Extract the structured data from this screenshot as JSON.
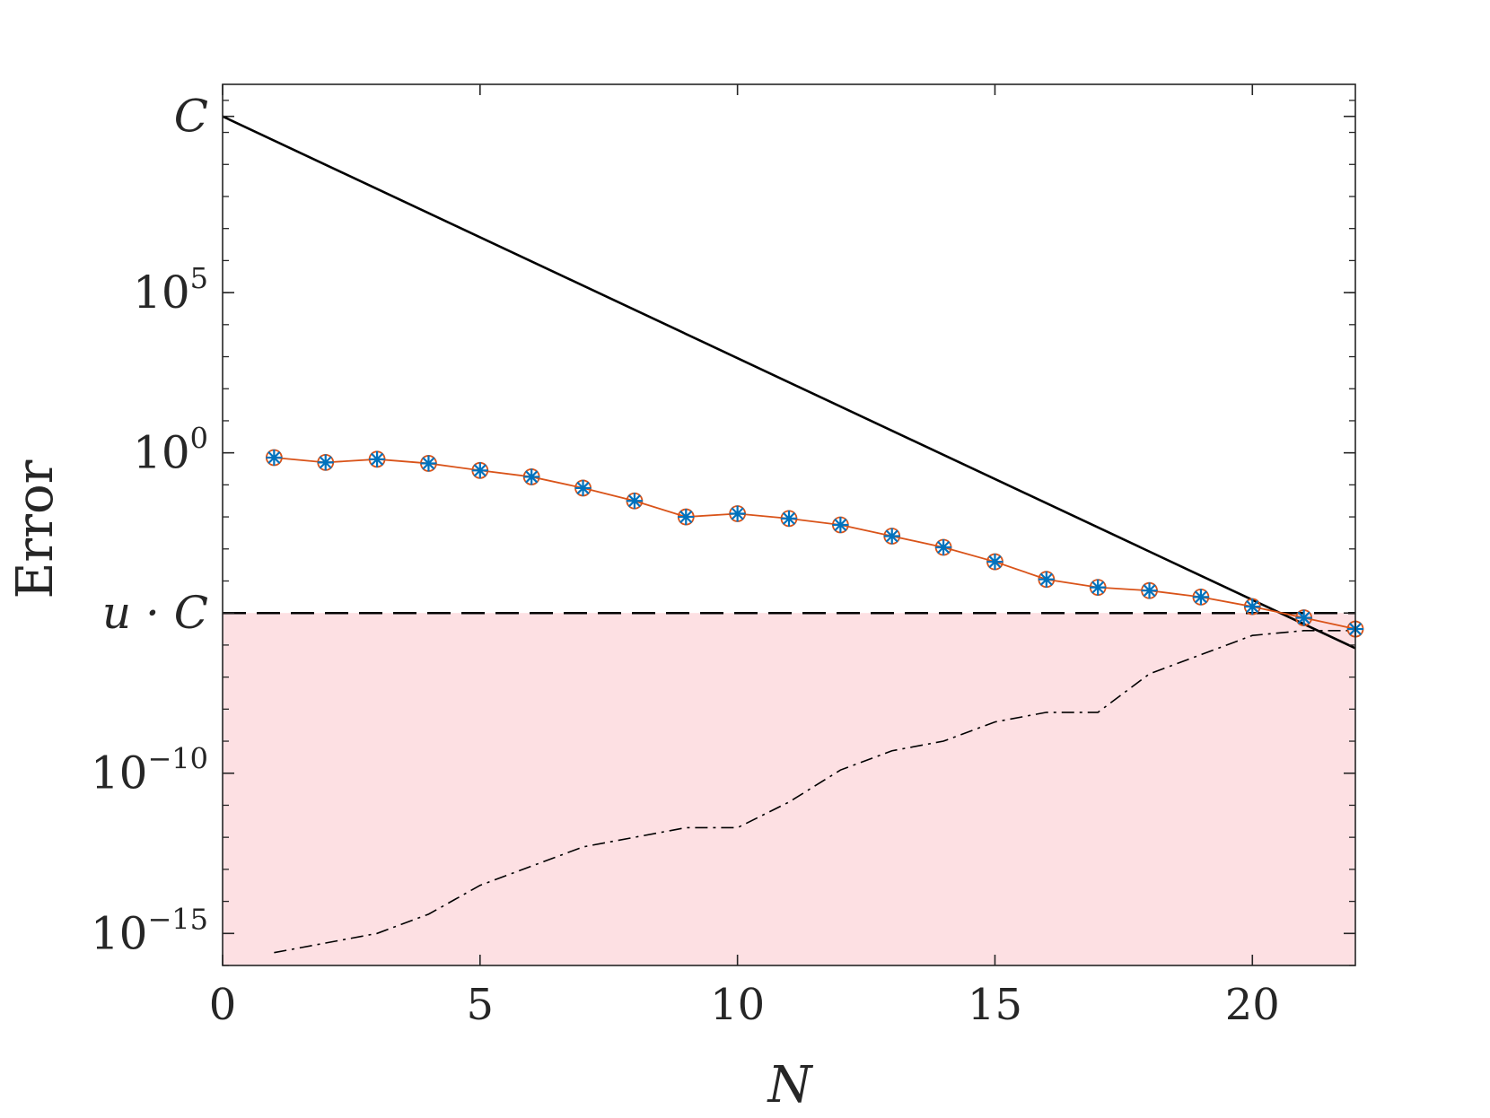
{
  "chart_data": {
    "type": "line",
    "title": "",
    "xlabel": "N",
    "ylabel": "Error",
    "xlim": [
      0,
      22
    ],
    "ylim_log10": [
      -16,
      11.5
    ],
    "y_scale": "log",
    "grid": false,
    "legend": "none",
    "x_ticks": [
      0,
      5,
      10,
      15,
      20
    ],
    "x_tick_labels": [
      "0",
      "5",
      "10",
      "15",
      "20"
    ],
    "y_ticks": [
      {
        "log10": 10.5,
        "base": "C",
        "exp": ""
      },
      {
        "log10": 5,
        "base": "10",
        "exp": "5"
      },
      {
        "log10": 0,
        "base": "10",
        "exp": "0"
      },
      {
        "log10": -5,
        "base": "u · C",
        "exp": ""
      },
      {
        "log10": -10,
        "base": "10",
        "exp": "−10"
      },
      {
        "log10": -15,
        "base": "10",
        "exp": "−15"
      }
    ],
    "shaded_region": {
      "log10_from": -16,
      "log10_to": -5,
      "color": "#fde0e3"
    },
    "dashed_line_log10": -5,
    "bound_line": {
      "x": [
        0,
        22
      ],
      "log10": [
        10.5,
        -6.1
      ]
    },
    "series": [
      {
        "style": "orange-circle-blue-star",
        "x": [
          1,
          2,
          3,
          4,
          5,
          6,
          7,
          8,
          9,
          10,
          11,
          12,
          13,
          14,
          15,
          16,
          17,
          18,
          19,
          20,
          21,
          22
        ],
        "log10": [
          -0.15,
          -0.3,
          -0.2,
          -0.33,
          -0.55,
          -0.75,
          -1.1,
          -1.5,
          -2.0,
          -1.9,
          -2.05,
          -2.25,
          -2.6,
          -2.95,
          -3.4,
          -3.95,
          -4.2,
          -4.3,
          -4.5,
          -4.8,
          -5.15,
          -5.5
        ]
      },
      {
        "style": "dash-dot-black",
        "x": [
          1,
          2,
          3,
          4,
          5,
          6,
          7,
          8,
          9,
          10,
          11,
          12,
          13,
          14,
          15,
          16,
          17,
          18,
          19,
          20,
          21,
          22
        ],
        "log10": [
          -15.6,
          -15.3,
          -15.0,
          -14.4,
          -13.5,
          -12.9,
          -12.3,
          -12.0,
          -11.7,
          -11.7,
          -10.9,
          -9.9,
          -9.3,
          -9.0,
          -8.4,
          -8.1,
          -8.1,
          -6.9,
          -6.3,
          -5.7,
          -5.55,
          -5.55
        ]
      }
    ],
    "colors": {
      "marker_circle": "#d95319",
      "marker_star": "#0072bd",
      "series_line": "#d95319",
      "bound_line": "#000000",
      "axis": "#262626",
      "shade": "#fde0e3"
    }
  }
}
